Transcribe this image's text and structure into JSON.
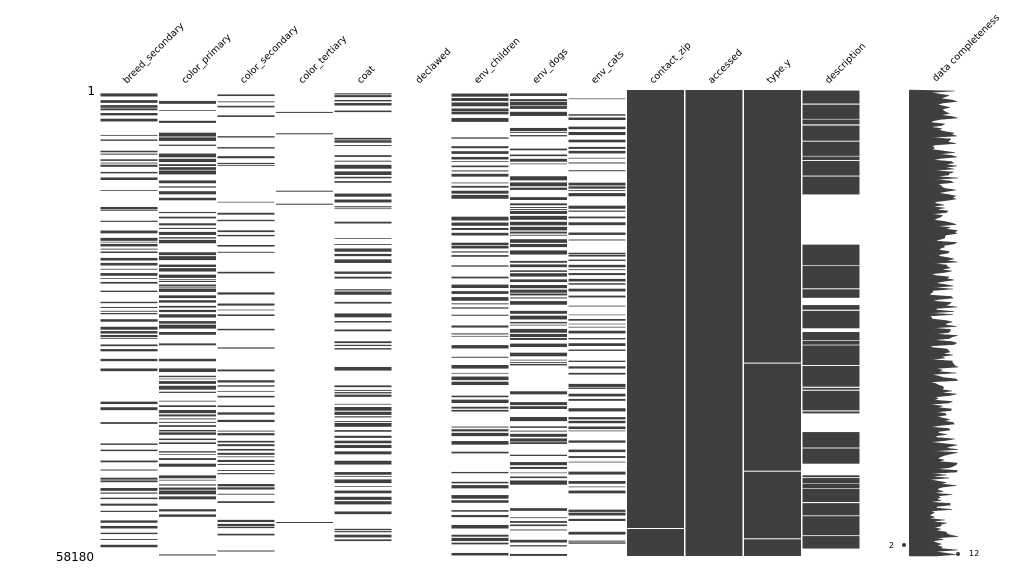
{
  "colors": {
    "filled": "#3f3f3f",
    "missing": "#ffffff"
  },
  "chart_data": {
    "type": "missingno-matrix",
    "row_range": [
      1,
      58180
    ],
    "row_labels": {
      "top": "1",
      "bottom": "58180"
    },
    "columns": [
      {
        "name": "breed_secondary",
        "completeness": 0.42,
        "style": "fine"
      },
      {
        "name": "color_primary",
        "completeness": 0.58,
        "style": "fine"
      },
      {
        "name": "color_secondary",
        "completeness": 0.3,
        "style": "fine"
      },
      {
        "name": "color_tertiary",
        "completeness": 0.01,
        "style": "lines"
      },
      {
        "name": "coat",
        "completeness": 0.55,
        "style": "fine"
      },
      {
        "name": "declawed",
        "completeness": 0.0,
        "style": "empty"
      },
      {
        "name": "env_children",
        "completeness": 0.55,
        "style": "fine"
      },
      {
        "name": "env_dogs",
        "completeness": 0.6,
        "style": "fine"
      },
      {
        "name": "env_cats",
        "completeness": 0.45,
        "style": "fine"
      },
      {
        "name": "contact_zip",
        "completeness": 1.0,
        "style": "solid"
      },
      {
        "name": "accessed",
        "completeness": 1.0,
        "style": "solid"
      },
      {
        "name": "type.y",
        "completeness": 1.0,
        "style": "solid"
      },
      {
        "name": "description",
        "completeness": 0.85,
        "style": "blocks"
      }
    ],
    "sparkline": {
      "label": "data completeness",
      "min": 2,
      "max": 12
    }
  }
}
